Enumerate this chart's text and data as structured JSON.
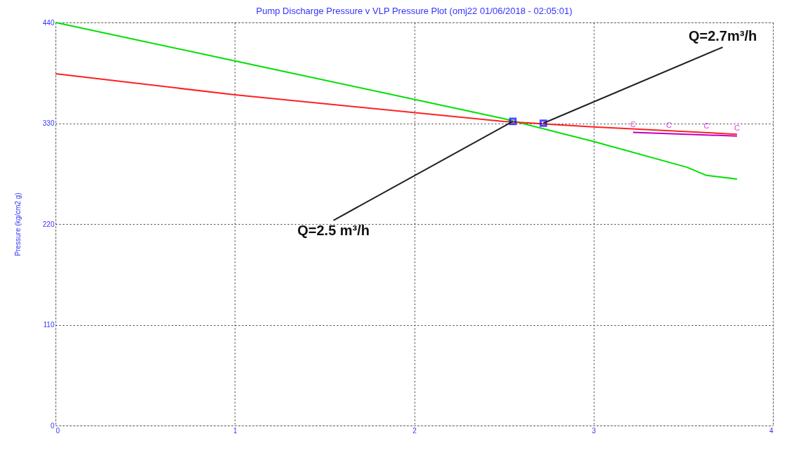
{
  "chart_data": {
    "type": "line",
    "title": "Pump Discharge Pressure v VLP Pressure Plot (omj22 01/06/2018 - 02:05:01)",
    "ylabel": "Pressure (kg/cm2 g)",
    "xlim": [
      0,
      4
    ],
    "ylim": [
      0,
      440
    ],
    "xticks": [
      0,
      1,
      2,
      3,
      4
    ],
    "yticks": [
      0,
      110,
      220,
      330,
      440
    ],
    "grid": true,
    "line_style": "solid",
    "series": [
      {
        "color": "#00e000",
        "x": [
          0,
          1,
          2.5,
          3,
          3.52,
          3.63,
          3.8
        ],
        "values": [
          440,
          398,
          335,
          310,
          282,
          273,
          269
        ]
      },
      {
        "color": "#ff2020",
        "x": [
          0,
          1,
          2.5,
          3,
          3.8
        ],
        "values": [
          384,
          361,
          332,
          326,
          318
        ]
      },
      {
        "color": "#c000c0",
        "x": [
          3.22,
          3.8
        ],
        "values": [
          320,
          316
        ]
      },
      {
        "type": "scatter",
        "marker": "square",
        "color": "#0000ff",
        "x": [
          2.55,
          2.72
        ],
        "values": [
          332,
          330
        ]
      }
    ],
    "annotations": [
      {
        "text": "Q=2.5 m³/h",
        "x": 2.55,
        "y": 332
      },
      {
        "text": "Q=2.7m³/h",
        "x": 2.72,
        "y": 330
      },
      {
        "text": "C",
        "x": 3.22,
        "y": 320
      },
      {
        "text": "C",
        "x": 3.42,
        "y": 319
      },
      {
        "text": "C",
        "x": 3.63,
        "y": 318
      },
      {
        "text": "C",
        "x": 3.8,
        "y": 316
      }
    ]
  }
}
